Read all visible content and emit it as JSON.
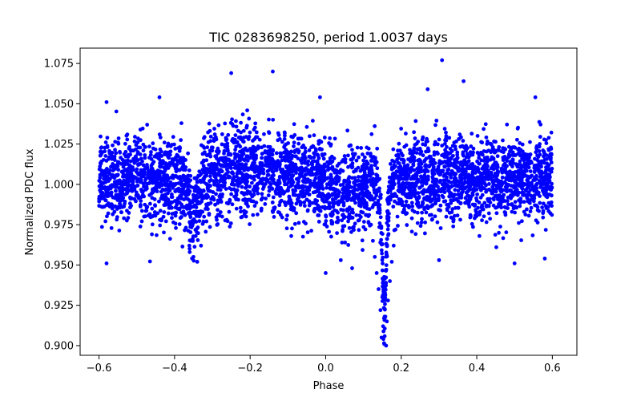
{
  "chart_data": {
    "type": "scatter",
    "title": "TIC 0283698250, period 1.0037 days",
    "xlabel": "Phase",
    "ylabel": "Normalized PDC flux",
    "xlim": [
      -0.65,
      0.665
    ],
    "ylim": [
      0.894,
      1.0845
    ],
    "x_ticks": [
      -0.6,
      -0.4,
      -0.2,
      0.0,
      0.2,
      0.4,
      0.6
    ],
    "x_tick_labels": [
      "−0.6",
      "−0.4",
      "−0.2",
      "0.0",
      "0.2",
      "0.4",
      "0.6"
    ],
    "y_ticks": [
      0.9,
      0.925,
      0.95,
      0.975,
      1.0,
      1.025,
      1.05,
      1.075
    ],
    "y_tick_labels": [
      "0.900",
      "0.925",
      "0.950",
      "0.975",
      "1.000",
      "1.025",
      "1.050",
      "1.075"
    ],
    "marker_color": "#0000ff",
    "series": [
      {
        "name": "Normalized PDC flux",
        "description": "Phase-folded light curve with a primary eclipse at phase ~0.155 (minimum ~0.901) and a shallower dip near phase ~-0.35 (~0.955)",
        "points": [
          [
            0.155,
            0.901
          ],
          [
            0.16,
            0.9
          ],
          [
            0.148,
            0.905
          ],
          [
            0.152,
            0.912
          ],
          [
            0.158,
            0.918
          ],
          [
            0.145,
            0.922
          ],
          [
            0.162,
            0.915
          ],
          [
            0.15,
            0.93
          ],
          [
            0.14,
            0.935
          ],
          [
            0.165,
            0.928
          ],
          [
            0.135,
            0.945
          ],
          [
            0.17,
            0.94
          ],
          [
            0.13,
            0.955
          ],
          [
            0.175,
            0.952
          ],
          [
            0.125,
            0.965
          ],
          [
            0.18,
            0.962
          ],
          [
            0.12,
            0.975
          ],
          [
            0.185,
            0.972
          ],
          [
            0.11,
            0.985
          ],
          [
            0.19,
            0.98
          ],
          [
            0.308,
            1.077
          ],
          [
            0.365,
            1.064
          ],
          [
            -0.25,
            1.069
          ],
          [
            -0.14,
            1.07
          ],
          [
            0.27,
            1.059
          ],
          [
            -0.015,
            1.054
          ],
          [
            -0.44,
            1.054
          ],
          [
            0.555,
            1.054
          ],
          [
            -0.58,
            1.051
          ],
          [
            -0.58,
            0.951
          ],
          [
            -0.35,
            0.955
          ],
          [
            -0.34,
            0.952
          ],
          [
            -0.36,
            0.958
          ],
          [
            -0.33,
            0.962
          ],
          [
            0.0,
            0.945
          ],
          [
            0.07,
            0.948
          ],
          [
            0.04,
            0.953
          ],
          [
            0.5,
            0.951
          ],
          [
            0.58,
            0.954
          ],
          [
            0.3,
            0.953
          ]
        ]
      }
    ]
  }
}
